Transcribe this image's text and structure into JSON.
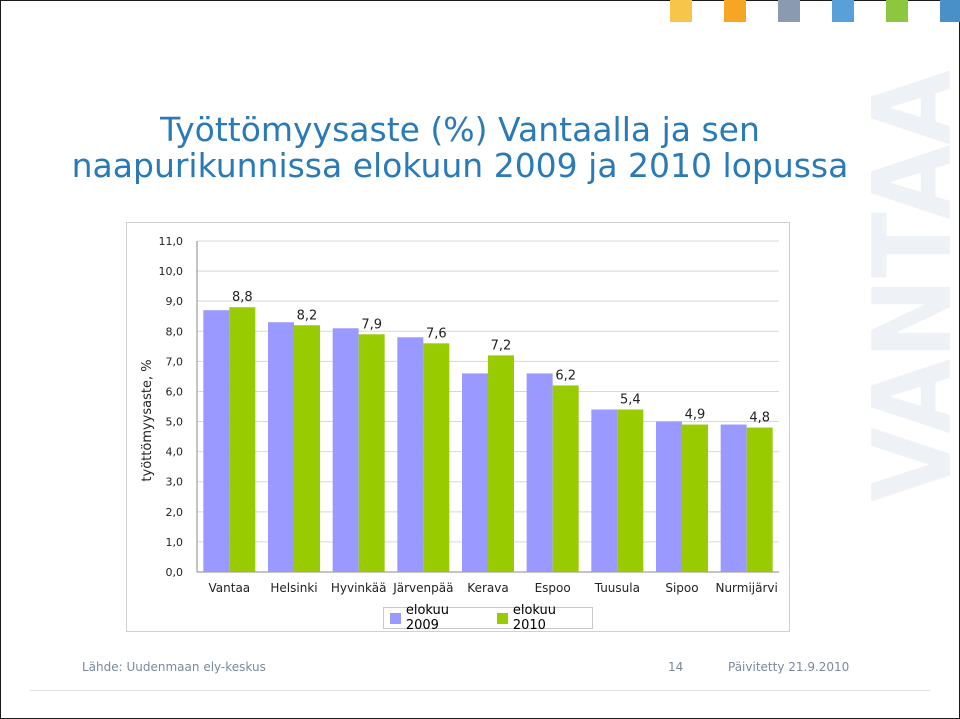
{
  "title": "Työttömyysaste (%) Vantaalla ja sen naapurikunnissa elokuun 2009 ja 2010 lopussa",
  "watermark_text": "VANTAA",
  "colors": {
    "title": "#2a7ab8",
    "series_2009": "#9999ff",
    "series_2010": "#99cc00",
    "squares": [
      "#f7c54a",
      "#f5a623",
      "#8a9ab0",
      "#5aa0d8",
      "#8dc63f",
      "#4a90c8"
    ]
  },
  "chart_data": {
    "type": "bar",
    "title": "",
    "ylabel": "työttömyysaste, %",
    "xlabel": "",
    "ylim": [
      0,
      11
    ],
    "yticks": [
      "0,0",
      "1,0",
      "2,0",
      "3,0",
      "4,0",
      "5,0",
      "6,0",
      "7,0",
      "8,0",
      "9,0",
      "10,0",
      "11,0"
    ],
    "categories": [
      "Vantaa",
      "Helsinki",
      "Hyvinkää",
      "Järvenpää",
      "Kerava",
      "Espoo",
      "Tuusula",
      "Sipoo",
      "Nurmijärvi"
    ],
    "series": [
      {
        "name": "elokuu 2009",
        "values": [
          8.7,
          8.3,
          8.1,
          7.8,
          6.6,
          6.6,
          5.4,
          5.0,
          4.9
        ],
        "labels": []
      },
      {
        "name": "elokuu 2010",
        "values": [
          8.8,
          8.2,
          7.9,
          7.6,
          7.2,
          6.2,
          5.4,
          4.9,
          4.8
        ],
        "labels": [
          "8,8",
          "8,2",
          "7,9",
          "7,6",
          "7,2",
          "6,2",
          "5,4",
          "4,9",
          "4,8"
        ]
      }
    ],
    "grid": true,
    "legend": "bottom"
  },
  "footer": {
    "source": "Lähde: Uudenmaan ely-keskus",
    "page": "14",
    "updated": "Päivitetty 21.9.2010"
  }
}
